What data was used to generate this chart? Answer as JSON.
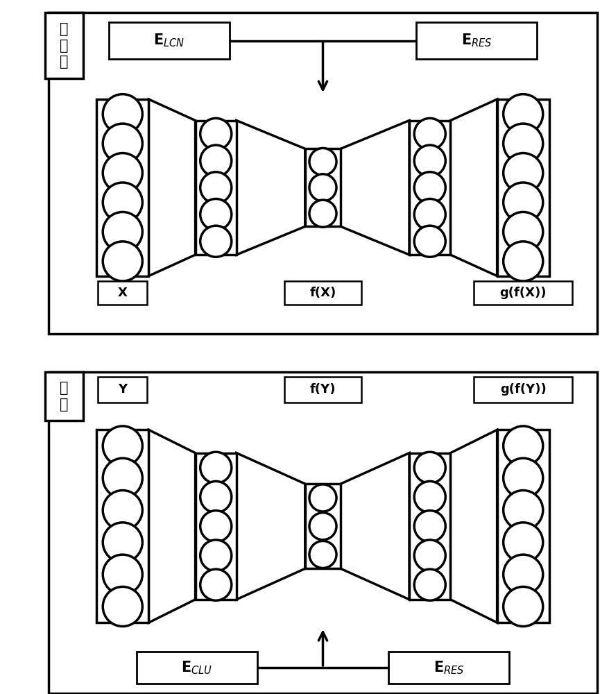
{
  "fig_width": 8.79,
  "fig_height": 10.0,
  "bg_color": "#ffffff",
  "lw": 2.5,
  "panel1": {
    "label_cn": "预\n训\n练",
    "elcn_text": "E",
    "elcn_sub": "LCN",
    "eres1_text": "E",
    "eres1_sub": "RES",
    "fx_label": "f(X)",
    "x_label": "X",
    "gfx_label": "g(f(X))"
  },
  "panel2": {
    "label_cn": "微\n调",
    "eclu_text": "E",
    "eclu_sub": "CLU",
    "eres2_text": "E",
    "eres2_sub": "RES",
    "fy_label": "f(Y)",
    "y_label": "Y",
    "gfy_label": "g(f(Y))"
  }
}
